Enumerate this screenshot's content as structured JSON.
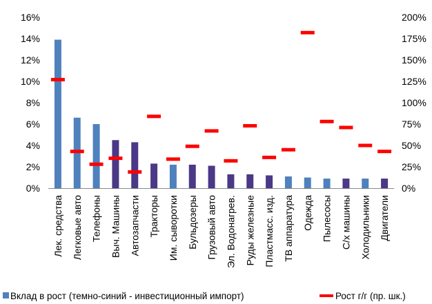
{
  "chart_data": {
    "type": "bar",
    "categories": [
      "Лек. средства",
      "Легковые авто",
      "Телефоны",
      "Выч. Машины",
      "Автозапчасти",
      "Тракторы",
      "Им. сыворотки",
      "Бульдозеры",
      "Грузовый авто",
      "Эл. Водонагрев.",
      "Руды железные",
      "Пластмасс. изд.",
      "ТВ аппаратура",
      "Одежда",
      "Пылесосы",
      "С/х машины",
      "Холодильники",
      "Двигатели"
    ],
    "series": [
      {
        "name": "Вклад в рост (темно-синий - инвестиционный импорт)",
        "type": "bar",
        "axis": "left",
        "values": [
          13.9,
          6.6,
          6.0,
          4.5,
          4.3,
          2.3,
          2.2,
          2.2,
          2.1,
          1.3,
          1.3,
          1.2,
          1.1,
          1.0,
          0.9,
          0.9,
          0.9,
          0.9
        ],
        "investment": [
          false,
          false,
          false,
          true,
          true,
          true,
          false,
          true,
          true,
          true,
          true,
          true,
          false,
          false,
          false,
          true,
          false,
          true
        ]
      },
      {
        "name": "Рост г/г (пр. шк.)",
        "type": "marker",
        "axis": "right",
        "values": [
          127,
          43,
          28,
          35,
          19,
          84,
          34,
          49,
          67,
          32,
          73,
          36,
          45,
          182,
          78,
          71,
          50,
          43
        ]
      }
    ],
    "left_axis": {
      "min": 0,
      "max": 16,
      "ticks": [
        "0%",
        "2%",
        "4%",
        "6%",
        "8%",
        "10%",
        "12%",
        "14%",
        "16%"
      ]
    },
    "right_axis": {
      "min": 0,
      "max": 200,
      "ticks": [
        "0%",
        "25%",
        "50%",
        "75%",
        "100%",
        "125%",
        "150%",
        "175%",
        "200%"
      ]
    },
    "colors": {
      "bar_light": "#4f81bd",
      "bar_dark": "#4b3887",
      "marker": "#ff0000"
    },
    "grid": false,
    "legend_position": "bottom"
  }
}
